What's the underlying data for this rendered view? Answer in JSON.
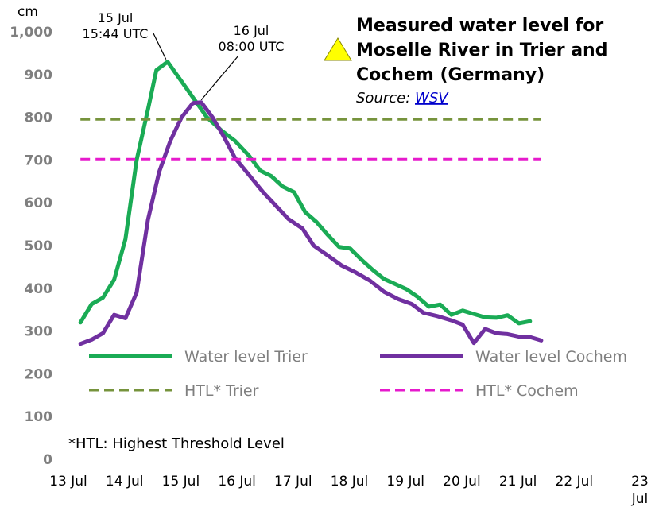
{
  "chart_data": {
    "type": "line",
    "title_lines": [
      "Measured water level for",
      "Moselle River in Trier and",
      "Cochem (Germany)"
    ],
    "source_prefix": "Source: ",
    "source_link": "WSV",
    "ylabel": "cm",
    "ylim": [
      0,
      1000
    ],
    "yticks": [
      {
        "value": 0,
        "label": "0"
      },
      {
        "value": 100,
        "label": "100"
      },
      {
        "value": 200,
        "label": "200"
      },
      {
        "value": 300,
        "label": "300"
      },
      {
        "value": 400,
        "label": "400"
      },
      {
        "value": 500,
        "label": "500"
      },
      {
        "value": 600,
        "label": "600"
      },
      {
        "value": 700,
        "label": "700"
      },
      {
        "value": 800,
        "label": "800"
      },
      {
        "value": 900,
        "label": "900"
      },
      {
        "value": 1000,
        "label": "1,000"
      }
    ],
    "xlim": [
      13,
      23
    ],
    "xticks": [
      {
        "value": 13,
        "label": "13 Jul"
      },
      {
        "value": 14,
        "label": "14 Jul"
      },
      {
        "value": 15,
        "label": "15 Jul"
      },
      {
        "value": 16,
        "label": "16 Jul"
      },
      {
        "value": 17,
        "label": "17 Jul"
      },
      {
        "value": 18,
        "label": "18 Jul"
      },
      {
        "value": 19,
        "label": "19 Jul"
      },
      {
        "value": 20,
        "label": "20 Jul"
      },
      {
        "value": 21,
        "label": "21 Jul"
      },
      {
        "value": 22,
        "label": "22 Jul"
      },
      {
        "value": 23,
        "label": "23 Jul"
      }
    ],
    "series": [
      {
        "name": "Water level Trier",
        "color": "#1aab55",
        "style": "solid",
        "points": [
          [
            13.3,
            320
          ],
          [
            13.5,
            363
          ],
          [
            13.7,
            378
          ],
          [
            13.9,
            420
          ],
          [
            14.1,
            515
          ],
          [
            14.3,
            700
          ],
          [
            14.5,
            818
          ],
          [
            14.65,
            910
          ],
          [
            14.85,
            930
          ],
          [
            15.0,
            902
          ],
          [
            15.25,
            856
          ],
          [
            15.55,
            800
          ],
          [
            15.8,
            770
          ],
          [
            16.05,
            745
          ],
          [
            16.3,
            710
          ],
          [
            16.5,
            675
          ],
          [
            16.7,
            662
          ],
          [
            16.9,
            638
          ],
          [
            17.1,
            625
          ],
          [
            17.3,
            578
          ],
          [
            17.5,
            555
          ],
          [
            17.7,
            525
          ],
          [
            17.9,
            497
          ],
          [
            18.1,
            493
          ],
          [
            18.3,
            467
          ],
          [
            18.5,
            443
          ],
          [
            18.7,
            422
          ],
          [
            18.9,
            410
          ],
          [
            19.1,
            398
          ],
          [
            19.3,
            380
          ],
          [
            19.5,
            357
          ],
          [
            19.7,
            362
          ],
          [
            19.9,
            338
          ],
          [
            20.1,
            348
          ],
          [
            20.3,
            340
          ],
          [
            20.5,
            332
          ],
          [
            20.7,
            331
          ],
          [
            20.9,
            337
          ],
          [
            21.1,
            318
          ],
          [
            21.3,
            323
          ]
        ]
      },
      {
        "name": "Water level Cochem",
        "color": "#7030a0",
        "style": "solid",
        "points": [
          [
            13.3,
            270
          ],
          [
            13.5,
            280
          ],
          [
            13.7,
            295
          ],
          [
            13.9,
            338
          ],
          [
            14.1,
            330
          ],
          [
            14.3,
            390
          ],
          [
            14.5,
            560
          ],
          [
            14.7,
            672
          ],
          [
            14.9,
            745
          ],
          [
            15.1,
            800
          ],
          [
            15.3,
            833
          ],
          [
            15.45,
            835
          ],
          [
            15.65,
            800
          ],
          [
            15.85,
            755
          ],
          [
            16.05,
            705
          ],
          [
            16.3,
            665
          ],
          [
            16.55,
            625
          ],
          [
            16.8,
            590
          ],
          [
            17.0,
            562
          ],
          [
            17.25,
            540
          ],
          [
            17.45,
            500
          ],
          [
            17.7,
            477
          ],
          [
            17.95,
            453
          ],
          [
            18.2,
            437
          ],
          [
            18.45,
            418
          ],
          [
            18.7,
            392
          ],
          [
            18.95,
            375
          ],
          [
            19.2,
            363
          ],
          [
            19.4,
            343
          ],
          [
            19.65,
            335
          ],
          [
            19.9,
            325
          ],
          [
            20.1,
            315
          ],
          [
            20.3,
            272
          ],
          [
            20.5,
            305
          ],
          [
            20.7,
            295
          ],
          [
            20.9,
            293
          ],
          [
            21.1,
            287
          ],
          [
            21.3,
            286
          ],
          [
            21.5,
            278
          ]
        ]
      },
      {
        "name": "HTL* Trier",
        "color": "#76933c",
        "style": "dashed",
        "points": [
          [
            13.3,
            795
          ],
          [
            21.5,
            795
          ]
        ]
      },
      {
        "name": "HTL* Cochem",
        "color": "#e61acc",
        "style": "dashed",
        "points": [
          [
            13.3,
            702
          ],
          [
            21.5,
            702
          ]
        ]
      }
    ],
    "annotations": [
      {
        "lines": [
          "15 Jul",
          "15:44 UTC"
        ],
        "x": 14.85,
        "y": 930
      },
      {
        "lines": [
          "16 Jul",
          "08:00 UTC"
        ],
        "x": 15.45,
        "y": 835
      }
    ],
    "footnote": "*HTL: Highest Threshold Level",
    "warning_icon": "warning-triangle-icon",
    "legend_placement": "bottom-inside",
    "grid": false
  }
}
